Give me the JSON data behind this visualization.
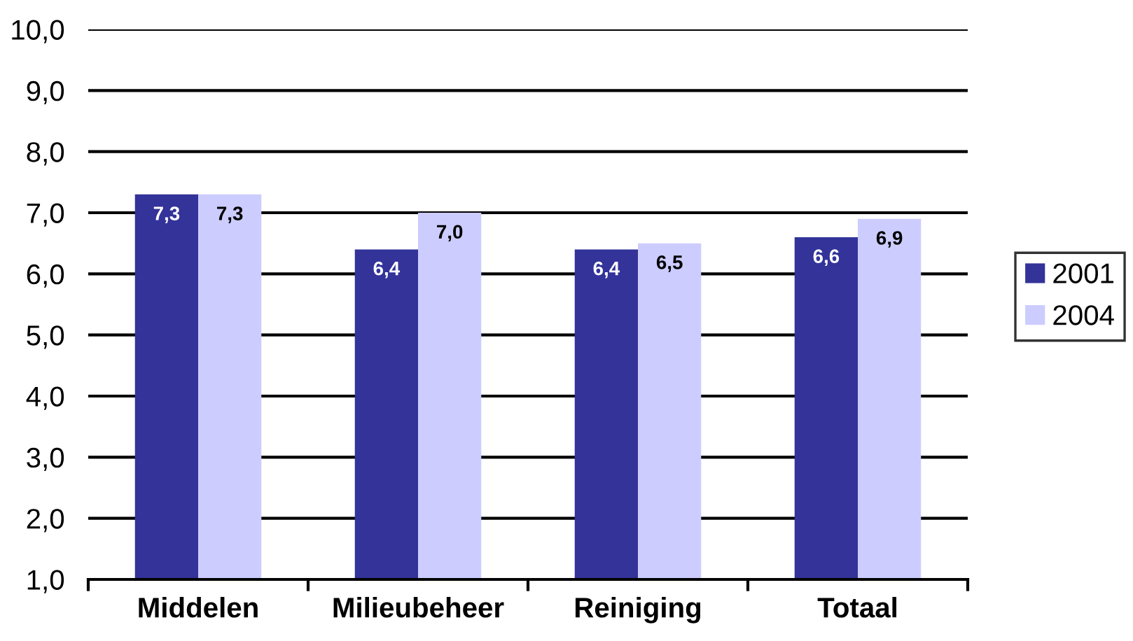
{
  "chart_data": {
    "type": "bar",
    "categories": [
      "Middelen",
      "Milieubeheer",
      "Reiniging",
      "Totaal"
    ],
    "series": [
      {
        "name": "2001",
        "color": "#333399",
        "values": [
          7.3,
          6.4,
          6.4,
          6.6
        ],
        "value_labels": [
          "7,3",
          "6,4",
          "6,4",
          "6,6"
        ]
      },
      {
        "name": "2004",
        "color": "#ccccff",
        "values": [
          7.3,
          7.0,
          6.5,
          6.9
        ],
        "value_labels": [
          "7,3",
          "7,0",
          "6,5",
          "6,9"
        ]
      }
    ],
    "ylim": [
      1,
      10
    ],
    "yticks": [
      {
        "value": 1,
        "label": "1,0"
      },
      {
        "value": 2,
        "label": "2,0"
      },
      {
        "value": 3,
        "label": "3,0"
      },
      {
        "value": 4,
        "label": "4,0"
      },
      {
        "value": 5,
        "label": "5,0"
      },
      {
        "value": 6,
        "label": "6,0"
      },
      {
        "value": 7,
        "label": "7,0"
      },
      {
        "value": 8,
        "label": "8,0"
      },
      {
        "value": 9,
        "label": "9,0"
      },
      {
        "value": 10,
        "label": "10,0"
      }
    ],
    "grid": "y",
    "legend": "right"
  }
}
